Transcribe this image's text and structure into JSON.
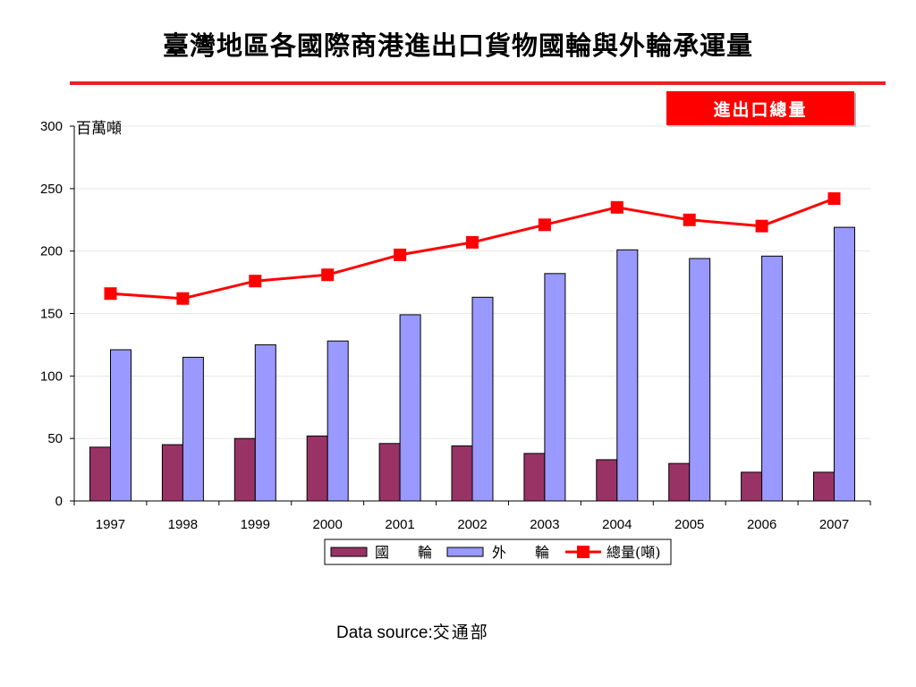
{
  "page": {
    "title": "臺灣地區各國際商港進出口貨物國輪與外輪承運量",
    "badge": "進出口總量",
    "source_label": "Data source:",
    "source_value": "交通部"
  },
  "colors": {
    "domestic": "#993366",
    "foreign": "#9999ff",
    "total": "#ff0000",
    "accent_rule": "#e8202a"
  },
  "chart_data": {
    "type": "bar",
    "ylabel": "百萬噸",
    "ylim": [
      0,
      300
    ],
    "yticks": [
      0,
      50,
      100,
      150,
      200,
      250,
      300
    ],
    "grid": true,
    "legend_position": "bottom",
    "categories": [
      "1997",
      "1998",
      "1999",
      "2000",
      "2001",
      "2002",
      "2003",
      "2004",
      "2005",
      "2006",
      "2007"
    ],
    "series": [
      {
        "name": "國　　輪",
        "type": "bar",
        "values": [
          43,
          45,
          50,
          52,
          46,
          44,
          38,
          33,
          30,
          23,
          23
        ]
      },
      {
        "name": "外　　輪",
        "type": "bar",
        "values": [
          121,
          115,
          125,
          128,
          149,
          163,
          182,
          201,
          194,
          196,
          219
        ]
      },
      {
        "name": "總量(噸)",
        "type": "line",
        "values": [
          166,
          162,
          176,
          181,
          197,
          207,
          221,
          235,
          225,
          220,
          242
        ]
      }
    ]
  }
}
